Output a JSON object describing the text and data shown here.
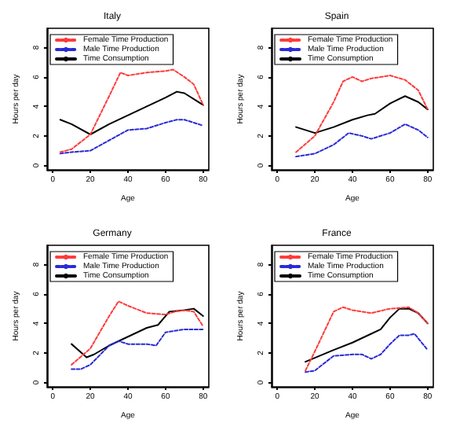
{
  "chart_data": [
    {
      "type": "line",
      "title": "Italy",
      "xlabel": "Age",
      "ylabel": "Hours per day",
      "xlim": [
        -3,
        83
      ],
      "xticks": [
        0,
        20,
        40,
        60,
        80
      ],
      "ylim": [
        -0.3,
        9.3
      ],
      "yticks": [
        0,
        2,
        4,
        6,
        8
      ],
      "legend": "top left",
      "grid": false,
      "marker": "none",
      "series": [
        {
          "name": "Female Time Production",
          "color": "#ff3b3b",
          "line_style": "dashed",
          "x": [
            4,
            10,
            20,
            30,
            36,
            40,
            50,
            60,
            64,
            70,
            75,
            80
          ],
          "values": [
            0.9,
            1.1,
            2.1,
            4.7,
            6.3,
            6.1,
            6.3,
            6.4,
            6.5,
            6.0,
            5.5,
            4.1
          ]
        },
        {
          "name": "Male Time Production",
          "color": "#2a2ad8",
          "line_style": "dashed",
          "x": [
            4,
            10,
            20,
            30,
            40,
            50,
            60,
            66,
            70,
            80
          ],
          "values": [
            0.8,
            0.9,
            1.0,
            1.7,
            2.4,
            2.5,
            2.9,
            3.1,
            3.1,
            2.7
          ]
        },
        {
          "name": "Time Consumption",
          "color": "#000000",
          "line_style": "solid",
          "x": [
            4,
            10,
            20,
            30,
            40,
            50,
            60,
            66,
            70,
            80
          ],
          "values": [
            3.1,
            2.8,
            2.1,
            2.8,
            3.4,
            4.0,
            4.6,
            5.0,
            4.9,
            4.1
          ]
        }
      ]
    },
    {
      "type": "line",
      "title": "Spain",
      "xlabel": "Age",
      "ylabel": "Hours per day",
      "xlim": [
        -3,
        83
      ],
      "xticks": [
        0,
        20,
        40,
        60,
        80
      ],
      "ylim": [
        -0.3,
        9.3
      ],
      "yticks": [
        0,
        2,
        4,
        6,
        8
      ],
      "legend": "top left",
      "grid": false,
      "marker": "none",
      "series": [
        {
          "name": "Female Time Production",
          "color": "#ff3b3b",
          "line_style": "dashed",
          "x": [
            10,
            20,
            30,
            35,
            40,
            45,
            50,
            60,
            68,
            75,
            80
          ],
          "values": [
            0.9,
            2.0,
            4.3,
            5.7,
            6.0,
            5.7,
            5.9,
            6.1,
            5.8,
            5.1,
            3.8
          ]
        },
        {
          "name": "Male Time Production",
          "color": "#2a2ad8",
          "line_style": "dashed",
          "x": [
            10,
            20,
            30,
            38,
            45,
            50,
            60,
            68,
            75,
            80
          ],
          "values": [
            0.6,
            0.8,
            1.4,
            2.2,
            2.0,
            1.8,
            2.2,
            2.8,
            2.4,
            1.9
          ]
        },
        {
          "name": "Time Consumption",
          "color": "#000000",
          "line_style": "solid",
          "x": [
            10,
            20,
            30,
            40,
            48,
            52,
            60,
            68,
            75,
            80
          ],
          "values": [
            2.6,
            2.2,
            2.6,
            3.1,
            3.4,
            3.5,
            4.2,
            4.7,
            4.3,
            3.8
          ]
        }
      ]
    },
    {
      "type": "line",
      "title": "Germany",
      "xlabel": "Age",
      "ylabel": "Hours per day",
      "xlim": [
        -3,
        83
      ],
      "xticks": [
        0,
        20,
        40,
        60,
        80
      ],
      "ylim": [
        -0.3,
        9.3
      ],
      "yticks": [
        0,
        2,
        4,
        6,
        8
      ],
      "legend": "top left",
      "grid": false,
      "marker": "none",
      "series": [
        {
          "name": "Female Time Production",
          "color": "#ff3b3b",
          "line_style": "dashed",
          "x": [
            10,
            20,
            30,
            35,
            40,
            50,
            60,
            65,
            70,
            75,
            80
          ],
          "values": [
            1.2,
            2.3,
            4.5,
            5.5,
            5.2,
            4.7,
            4.6,
            4.8,
            4.9,
            4.8,
            3.8
          ]
        },
        {
          "name": "Male Time Production",
          "color": "#2a2ad8",
          "line_style": "dashed",
          "x": [
            10,
            15,
            20,
            30,
            35,
            40,
            50,
            55,
            60,
            70,
            80
          ],
          "values": [
            0.9,
            0.9,
            1.2,
            2.5,
            2.8,
            2.6,
            2.6,
            2.5,
            3.4,
            3.6,
            3.6
          ]
        },
        {
          "name": "Time Consumption",
          "color": "#000000",
          "line_style": "solid",
          "x": [
            10,
            18,
            22,
            30,
            40,
            50,
            56,
            62,
            70,
            75,
            80
          ],
          "values": [
            2.6,
            1.7,
            1.9,
            2.5,
            3.1,
            3.7,
            3.9,
            4.8,
            4.9,
            5.0,
            4.5
          ]
        }
      ]
    },
    {
      "type": "line",
      "title": "France",
      "xlabel": "Age",
      "ylabel": "Hours per day",
      "xlim": [
        -3,
        83
      ],
      "xticks": [
        0,
        20,
        40,
        60,
        80
      ],
      "ylim": [
        -0.3,
        9.3
      ],
      "yticks": [
        0,
        2,
        4,
        6,
        8
      ],
      "legend": "top left",
      "grid": false,
      "marker": "none",
      "series": [
        {
          "name": "Female Time Production",
          "color": "#ff3b3b",
          "line_style": "dashed",
          "x": [
            15,
            20,
            30,
            35,
            40,
            50,
            60,
            70,
            75,
            80
          ],
          "values": [
            0.8,
            2.1,
            4.8,
            5.1,
            4.9,
            4.7,
            5.0,
            5.1,
            4.7,
            4.0
          ]
        },
        {
          "name": "Male Time Production",
          "color": "#2a2ad8",
          "line_style": "dashed",
          "x": [
            15,
            20,
            30,
            40,
            45,
            50,
            55,
            60,
            65,
            70,
            73,
            80
          ],
          "values": [
            0.7,
            0.8,
            1.8,
            1.9,
            1.9,
            1.6,
            1.9,
            2.6,
            3.2,
            3.2,
            3.3,
            2.2
          ]
        },
        {
          "name": "Time Consumption",
          "color": "#000000",
          "line_style": "solid",
          "x": [
            15,
            30,
            40,
            50,
            55,
            60,
            65,
            70,
            75,
            80
          ],
          "values": [
            1.4,
            2.2,
            2.7,
            3.3,
            3.6,
            4.4,
            5.0,
            5.0,
            4.7,
            4.0
          ]
        }
      ]
    }
  ]
}
